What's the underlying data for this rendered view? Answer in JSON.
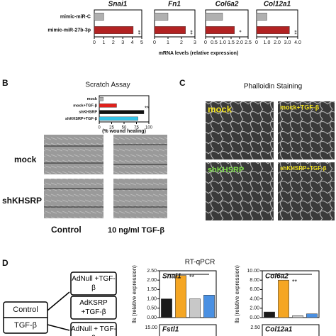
{
  "chart_data": [
    {
      "type": "hbar",
      "title": "Snai1",
      "categories": [
        "mimic-miR-C",
        "mimic-miR-27b-3p"
      ],
      "values": [
        1,
        4.1
      ],
      "colors": [
        "#b0b0b0",
        "#b22222"
      ],
      "xlim": [
        0,
        5
      ],
      "xticks": [
        0,
        1,
        2,
        3,
        4,
        5
      ],
      "annotations": [
        "**"
      ],
      "xlabel": "mRNA levels (relative expression)"
    },
    {
      "type": "hbar",
      "title": "Fn1",
      "values": [
        1,
        2.3
      ],
      "colors": [
        "#b0b0b0",
        "#b22222"
      ],
      "xlim": [
        0,
        3
      ],
      "xticks": [
        0,
        1,
        2,
        3
      ],
      "annotations": [
        "**"
      ]
    },
    {
      "type": "hbar",
      "title": "Col6a2",
      "values": [
        1,
        1.7
      ],
      "colors": [
        "#b0b0b0",
        "#b22222"
      ],
      "xlim": [
        0,
        2.5
      ],
      "xticks": [
        0,
        0.5,
        {
          "value": 1,
          "label": "1.0"
        },
        {
          "value": 1.5,
          "label": "1.5"
        },
        {
          "value": 2,
          "label": "2.0"
        },
        {
          "value": 2.5,
          "label": "2.5"
        }
      ],
      "annotations": [
        "*"
      ]
    },
    {
      "type": "hbar",
      "title": "Col12a1",
      "values": [
        1,
        3.2
      ],
      "colors": [
        "#b0b0b0",
        "#b22222"
      ],
      "xlim": [
        0,
        4
      ],
      "xticks": [
        0,
        {
          "value": 1,
          "label": "1.0"
        },
        {
          "value": 2,
          "label": "2.0"
        },
        {
          "value": 3,
          "label": "3.0"
        },
        {
          "value": 4,
          "label": "4.0"
        }
      ],
      "annotations": [
        "**"
      ]
    },
    {
      "type": "hbar",
      "title": "Scratch Assay",
      "categories": [
        "mock",
        "mock+TGF-β",
        "shKHSRP",
        "shKHSRP+TGF-β"
      ],
      "values": [
        8,
        35,
        90,
        78
      ],
      "colors": [
        "#b0b0b0",
        "#e0201b",
        "#111111",
        "#35c3e8"
      ],
      "xlim": [
        0,
        100
      ],
      "xticks": [
        0,
        25,
        50,
        75,
        100
      ],
      "xlabel": "(% wound healing)",
      "annotations": [
        "**"
      ]
    },
    {
      "type": "bar",
      "title": "Snai1",
      "values": [
        1,
        2.25,
        1,
        1.2
      ],
      "colors": [
        "#1a1a1a",
        "#f5a623",
        "#c8c8c8",
        "#4a90e2"
      ],
      "ylim": [
        0,
        2.5
      ],
      "yticks": [
        {
          "value": 0,
          "label": "0.00"
        },
        {
          "value": 0.5,
          "label": "0.50"
        },
        {
          "value": 1,
          "label": "1.00"
        },
        {
          "value": 1.5,
          "label": "1.50"
        },
        {
          "value": 2,
          "label": "2.00"
        },
        {
          "value": 2.5,
          "label": "2.50"
        }
      ],
      "ylabel": "lls (relative expression)",
      "annotations": [
        "**"
      ]
    },
    {
      "type": "bar",
      "title": "Col6a2",
      "values": [
        1.2,
        8,
        0.4,
        0.8
      ],
      "colors": [
        "#1a1a1a",
        "#f5a623",
        "#c8c8c8",
        "#4a90e2"
      ],
      "ylim": [
        0,
        10
      ],
      "yticks": [
        {
          "value": 0,
          "label": "0.00"
        },
        {
          "value": 2,
          "label": "2.00"
        },
        {
          "value": 4,
          "label": "4.00"
        },
        {
          "value": 6,
          "label": "6.00"
        },
        {
          "value": 8,
          "label": "8.00"
        },
        {
          "value": 10,
          "label": "10.00"
        }
      ],
      "ylabel": "lls (relative expression)",
      "annotations": [
        "**"
      ]
    }
  ],
  "panels": {
    "b": "B",
    "c": "C",
    "d": "D"
  },
  "scratch": {
    "row1": "mock",
    "row2": "shKHSRP",
    "col1": "Control",
    "col2": "10 ng/ml TGF-β"
  },
  "phalloidin": {
    "title": "Phalloidin Staining",
    "img1": "mock",
    "img2": "mock+TGF-β",
    "img3": "shKHSRP",
    "img4": "shKHSRP+TGF-β"
  },
  "rtqpcr": {
    "title": "RT-qPCR",
    "control": "Control",
    "tgf": "TGF-β",
    "box1": "AdNull +TGF-β",
    "box2": "AdKSRP +TGF-β",
    "box3": "AdNull + TGF-β",
    "fstl1": "Fstl1",
    "fstl1_tick": "15.00",
    "col12a1": "Col12a1",
    "col12a1_tick": "2.50"
  }
}
